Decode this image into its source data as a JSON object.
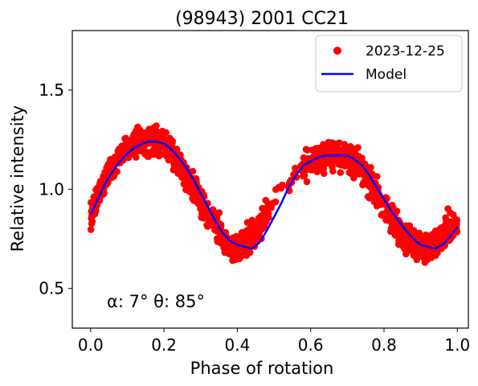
{
  "chart_data": {
    "type": "scatter",
    "title": "(98943) 2001 CC21",
    "xlabel": "Phase of rotation",
    "ylabel": "Relative intensity",
    "xlim": [
      -0.05,
      1.03
    ],
    "ylim": [
      0.3,
      1.8
    ],
    "xticks": [
      0.0,
      0.2,
      0.4,
      0.6,
      0.8,
      1.0
    ],
    "xtick_labels": [
      "0.0",
      "0.2",
      "0.4",
      "0.6",
      "0.8",
      "1.0"
    ],
    "yticks": [
      0.5,
      1.0,
      1.5
    ],
    "ytick_labels": [
      "0.5",
      "1.0",
      "1.5"
    ],
    "grid": false,
    "legend_position": "top-right",
    "annotation": "α: 7° θ: 85°",
    "series": [
      {
        "name": "2023-12-25",
        "kind": "scatter",
        "color": "#ff0000",
        "points_note": "dense observations roughly following the model with scatter about ±0.15",
        "x": [
          0.0,
          0.01,
          0.02,
          0.03,
          0.04,
          0.05,
          0.06,
          0.07,
          0.08,
          0.09,
          0.1,
          0.11,
          0.12,
          0.13,
          0.14,
          0.15,
          0.16,
          0.17,
          0.18,
          0.19,
          0.2,
          0.21,
          0.22,
          0.23,
          0.24,
          0.25,
          0.26,
          0.27,
          0.28,
          0.29,
          0.3,
          0.31,
          0.32,
          0.33,
          0.34,
          0.35,
          0.36,
          0.37,
          0.38,
          0.39,
          0.4,
          0.41,
          0.42,
          0.43,
          0.44,
          0.45,
          0.46,
          0.47,
          0.48,
          0.5,
          0.52,
          0.54,
          0.56,
          0.57,
          0.58,
          0.59,
          0.6,
          0.61,
          0.62,
          0.63,
          0.64,
          0.65,
          0.66,
          0.67,
          0.68,
          0.69,
          0.7,
          0.71,
          0.72,
          0.73,
          0.74,
          0.75,
          0.76,
          0.77,
          0.78,
          0.79,
          0.8,
          0.81,
          0.82,
          0.83,
          0.84,
          0.85,
          0.86,
          0.87,
          0.88,
          0.89,
          0.9,
          0.91,
          0.92,
          0.93,
          0.94,
          0.95,
          0.96,
          0.97,
          0.98,
          0.99,
          1.0
        ],
        "y_center": [
          0.87,
          0.92,
          0.96,
          1.0,
          1.04,
          1.08,
          1.11,
          1.14,
          1.17,
          1.19,
          1.21,
          1.22,
          1.23,
          1.24,
          1.24,
          1.24,
          1.24,
          1.24,
          1.24,
          1.23,
          1.22,
          1.2,
          1.18,
          1.16,
          1.13,
          1.1,
          1.07,
          1.04,
          1.0,
          0.97,
          0.94,
          0.91,
          0.88,
          0.85,
          0.82,
          0.79,
          0.76,
          0.74,
          0.72,
          0.71,
          0.71,
          0.72,
          0.73,
          0.75,
          0.76,
          0.78,
          0.81,
          0.84,
          0.87,
          0.93,
          0.99,
          1.04,
          1.08,
          1.1,
          1.12,
          1.13,
          1.14,
          1.15,
          1.16,
          1.17,
          1.17,
          1.17,
          1.17,
          1.17,
          1.17,
          1.16,
          1.15,
          1.14,
          1.13,
          1.11,
          1.09,
          1.07,
          1.04,
          1.01,
          0.98,
          0.95,
          0.92,
          0.89,
          0.86,
          0.83,
          0.8,
          0.78,
          0.76,
          0.74,
          0.72,
          0.71,
          0.71,
          0.71,
          0.71,
          0.72,
          0.73,
          0.75,
          0.77,
          0.79,
          0.81,
          0.82,
          0.82
        ]
      },
      {
        "name": "Model",
        "kind": "line",
        "color": "#0000ff",
        "x": [
          0.0,
          0.02,
          0.04,
          0.06,
          0.08,
          0.1,
          0.12,
          0.14,
          0.16,
          0.18,
          0.2,
          0.22,
          0.24,
          0.26,
          0.28,
          0.3,
          0.32,
          0.34,
          0.36,
          0.38,
          0.4,
          0.42,
          0.44,
          0.46,
          0.48,
          0.5,
          0.52,
          0.54,
          0.56,
          0.58,
          0.6,
          0.62,
          0.64,
          0.66,
          0.68,
          0.7,
          0.72,
          0.74,
          0.76,
          0.78,
          0.8,
          0.82,
          0.84,
          0.86,
          0.88,
          0.9,
          0.92,
          0.94,
          0.96,
          0.98,
          1.0
        ],
        "y": [
          0.87,
          0.95,
          1.03,
          1.09,
          1.14,
          1.18,
          1.21,
          1.23,
          1.24,
          1.24,
          1.23,
          1.2,
          1.16,
          1.11,
          1.05,
          0.98,
          0.91,
          0.84,
          0.78,
          0.74,
          0.72,
          0.71,
          0.7,
          0.73,
          0.79,
          0.86,
          0.93,
          1.01,
          1.07,
          1.12,
          1.14,
          1.16,
          1.17,
          1.17,
          1.17,
          1.17,
          1.15,
          1.12,
          1.07,
          1.01,
          0.95,
          0.89,
          0.84,
          0.79,
          0.75,
          0.72,
          0.71,
          0.7,
          0.72,
          0.76,
          0.81
        ]
      }
    ]
  }
}
